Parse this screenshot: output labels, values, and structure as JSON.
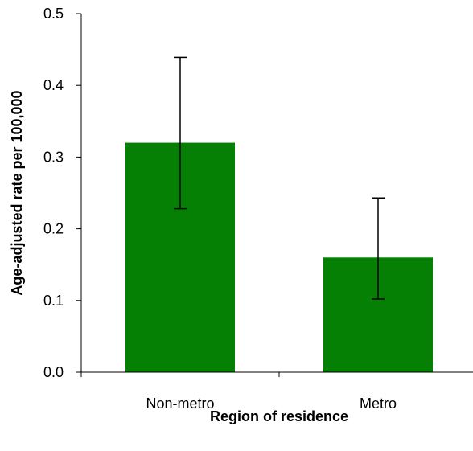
{
  "chart_data": {
    "type": "bar",
    "title": "",
    "xlabel": "Region of residence",
    "ylabel": "Age-adjusted rate per 100,000",
    "categories": [
      "Non-metro",
      "Metro"
    ],
    "values": [
      0.32,
      0.16
    ],
    "error_bars": [
      {
        "lower": 0.228,
        "upper": 0.439
      },
      {
        "lower": 0.102,
        "upper": 0.243
      }
    ],
    "ylim": [
      0,
      0.5
    ],
    "yticks": [
      0.0,
      0.1,
      0.2,
      0.3,
      0.4,
      0.5
    ],
    "ytick_labels": [
      "0.0",
      "0.1",
      "0.2",
      "0.3",
      "0.4",
      "0.5"
    ],
    "grid": false,
    "legend": "none",
    "bar_color": "#058005"
  }
}
